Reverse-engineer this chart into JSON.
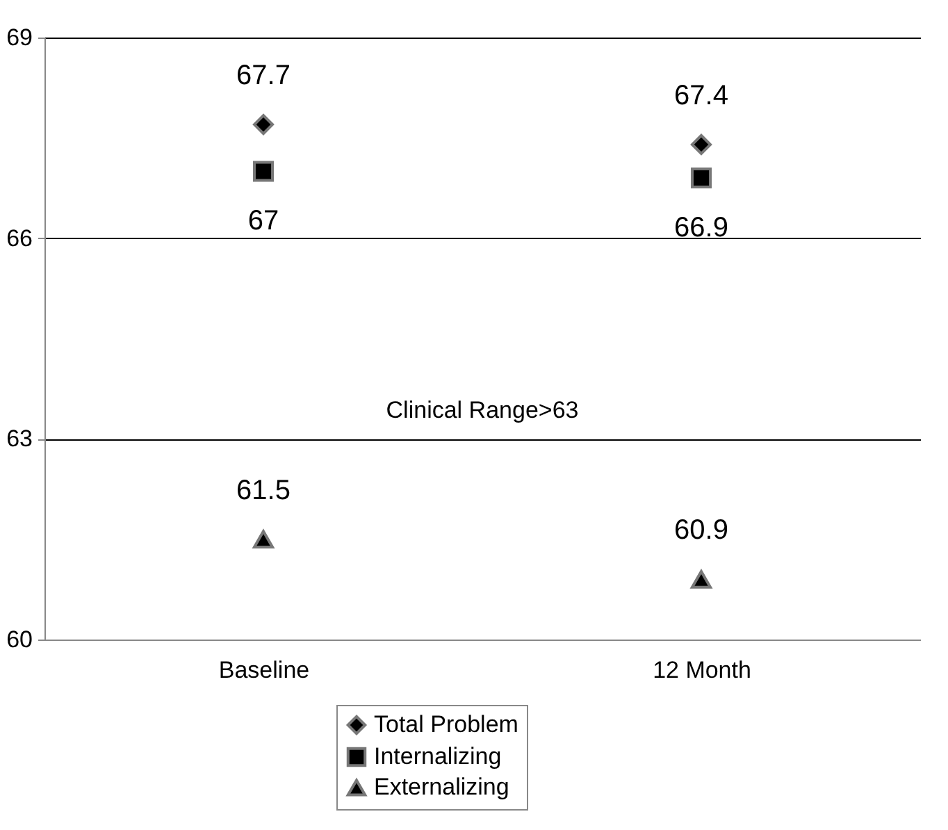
{
  "chart_data": {
    "type": "scatter",
    "categories": [
      "Baseline",
      "12 Month"
    ],
    "series": [
      {
        "name": "Total Problem",
        "color": "#000000",
        "marker": "diamond",
        "values": [
          67.7,
          67.4
        ]
      },
      {
        "name": "Internalizing",
        "color": "#000000",
        "marker": "square",
        "values": [
          67,
          66.9
        ]
      },
      {
        "name": "Externalizing",
        "color": "#000000",
        "marker": "triangle",
        "values": [
          61.5,
          60.9
        ]
      }
    ],
    "ylim": [
      60,
      69
    ],
    "yticks": [
      60,
      63,
      66,
      69
    ],
    "grid": "y",
    "legend": "bottom",
    "data_labels": true,
    "annotations": [
      "Clinical Range>63"
    ]
  }
}
